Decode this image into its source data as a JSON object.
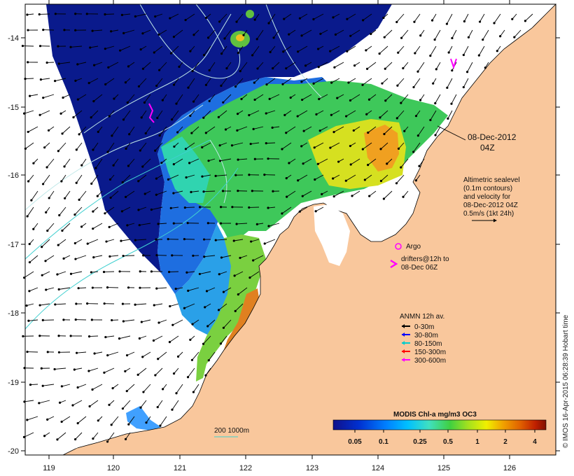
{
  "map": {
    "lon_ticks": [
      "119",
      "120",
      "121",
      "122",
      "123",
      "124",
      "125",
      "126"
    ],
    "lat_ticks": [
      "-14",
      "-15",
      "-16",
      "-17",
      "-18",
      "-19",
      "-20"
    ],
    "date": {
      "line1": "08-Dec-2012",
      "line2": "04Z"
    },
    "altimetry_note": [
      "Altimetric sealevel",
      "(0.1m contours)",
      "and velocity for",
      "08-Dec-2012 04Z",
      "0.5m/s (1kt 24h)"
    ],
    "argo_label": "Argo",
    "drifters_label": [
      "drifters@12h to",
      "08-Dec 06Z"
    ],
    "anmn": {
      "title": "ANMN 12h av.",
      "items": [
        {
          "label": "0-30m",
          "color": "#000000"
        },
        {
          "label": "30-80m",
          "color": "#0000ff"
        },
        {
          "label": "80-150m",
          "color": "#00cccc"
        },
        {
          "label": "150-300m",
          "color": "#ff0000"
        },
        {
          "label": "300-600m",
          "color": "#ff00ff"
        }
      ]
    },
    "bathy_label": "200  1000m",
    "colorbar": {
      "title": "MODIS Chl-a mg/m3 OC3",
      "ticks": [
        "0.05",
        "0.1",
        "0.25",
        "0.5",
        "1",
        "2",
        "4"
      ],
      "colors": [
        "#10108a",
        "#0030d0",
        "#0080ff",
        "#00c0ff",
        "#40e0c0",
        "#40d040",
        "#a0e020",
        "#f0f000",
        "#f0a000",
        "#e06000",
        "#c02000",
        "#801000"
      ]
    },
    "credit": "© IMOS 16-Apr-2015 06:28:39 Hobart time",
    "colors": {
      "land": "#f9c79c",
      "ocean_deep": "#0a1a8c",
      "cloud": "#ffffff",
      "contour": "#b0e0e0",
      "bathy": "#40d0d0"
    }
  }
}
